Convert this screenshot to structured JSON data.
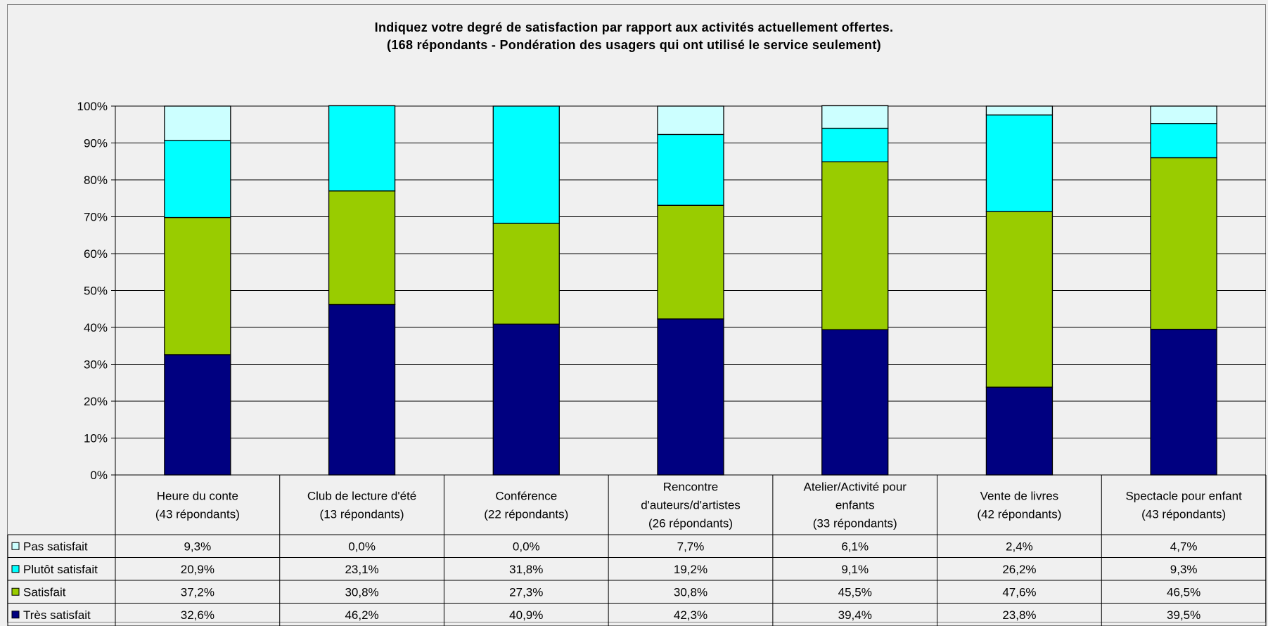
{
  "chart_data": {
    "type": "bar",
    "stacked": true,
    "percent": true,
    "title": "Indiquez votre degré de satisfaction par rapport aux activités actuellement offertes.",
    "subtitle": "(168 répondants - Pondération des usagers qui ont utilisé le service seulement)",
    "ylim": [
      0,
      100
    ],
    "yticks": [
      "0%",
      "10%",
      "20%",
      "30%",
      "40%",
      "50%",
      "60%",
      "70%",
      "80%",
      "90%",
      "100%"
    ],
    "grid": true,
    "legend": "data-table-left",
    "categories": [
      [
        "Heure du conte",
        "(43 répondants)"
      ],
      [
        "Club de lecture d'été",
        "(13 répondants)"
      ],
      [
        "Conférence",
        "(22 répondants)"
      ],
      [
        "Rencontre",
        "d'auteurs/d'artistes",
        "(26 répondants)"
      ],
      [
        "Atelier/Activité pour",
        "enfants",
        "(33 répondants)"
      ],
      [
        "Vente de livres",
        "(42 répondants)"
      ],
      [
        "Spectacle pour enfant",
        "(43 répondants)"
      ]
    ],
    "series": [
      {
        "name": "Pas satisfait",
        "color": "#ccffff",
        "values": [
          9.3,
          0.0,
          0.0,
          7.7,
          6.1,
          2.4,
          4.7
        ],
        "labels": [
          "9,3%",
          "0,0%",
          "0,0%",
          "7,7%",
          "6,1%",
          "2,4%",
          "4,7%"
        ]
      },
      {
        "name": "Plutôt satisfait",
        "color": "#00ffff",
        "values": [
          20.9,
          23.1,
          31.8,
          19.2,
          9.1,
          26.2,
          9.3
        ],
        "labels": [
          "20,9%",
          "23,1%",
          "31,8%",
          "19,2%",
          "9,1%",
          "26,2%",
          "9,3%"
        ]
      },
      {
        "name": "Satisfait",
        "color": "#99cc00",
        "values": [
          37.2,
          30.8,
          27.3,
          30.8,
          45.5,
          47.6,
          46.5
        ],
        "labels": [
          "37,2%",
          "30,8%",
          "27,3%",
          "30,8%",
          "45,5%",
          "47,6%",
          "46,5%"
        ]
      },
      {
        "name": "Très satisfait",
        "color": "#000080",
        "values": [
          32.6,
          46.2,
          40.9,
          42.3,
          39.4,
          23.8,
          39.5
        ],
        "labels": [
          "32,6%",
          "46,2%",
          "40,9%",
          "42,3%",
          "39,4%",
          "23,8%",
          "39,5%"
        ]
      }
    ]
  }
}
